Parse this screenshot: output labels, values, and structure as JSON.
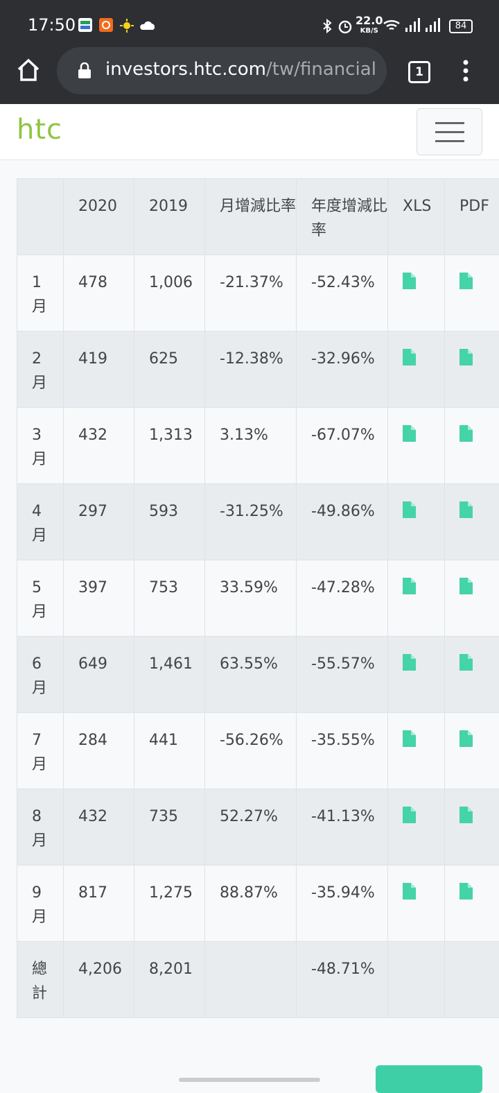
{
  "status_bar": {
    "time": "17:50",
    "net_speed": "22.0",
    "net_unit": "KB/S",
    "battery": "84"
  },
  "browser": {
    "url_host": "investors.htc.com",
    "url_path": "/tw/financial-i",
    "tab_count": "1"
  },
  "header": {
    "logo": "htc"
  },
  "table": {
    "headers": [
      "2020",
      "2019",
      "月增減比率",
      "年度增減比率",
      "XLS",
      "PDF"
    ],
    "rows": [
      [
        "1月",
        "478",
        "1,006",
        "-21.37%",
        "-52.43%"
      ],
      [
        "2月",
        "419",
        "625",
        "-12.38%",
        "-32.96%"
      ],
      [
        "3月",
        "432",
        "1,313",
        "3.13%",
        "-67.07%"
      ],
      [
        "4月",
        "297",
        "593",
        "-31.25%",
        "-49.86%"
      ],
      [
        "5月",
        "397",
        "753",
        "33.59%",
        "-47.28%"
      ],
      [
        "6月",
        "649",
        "1,461",
        "63.55%",
        "-55.57%"
      ],
      [
        "7月",
        "284",
        "441",
        "-56.26%",
        "-35.55%"
      ],
      [
        "8月",
        "432",
        "735",
        "52.27%",
        "-41.13%"
      ],
      [
        "9月",
        "817",
        "1,275",
        "88.87%",
        "-35.94%"
      ]
    ],
    "total": {
      "label": "總計",
      "v2020": "4,206",
      "v2019": "8,201",
      "yoy": "-48.71%"
    }
  }
}
